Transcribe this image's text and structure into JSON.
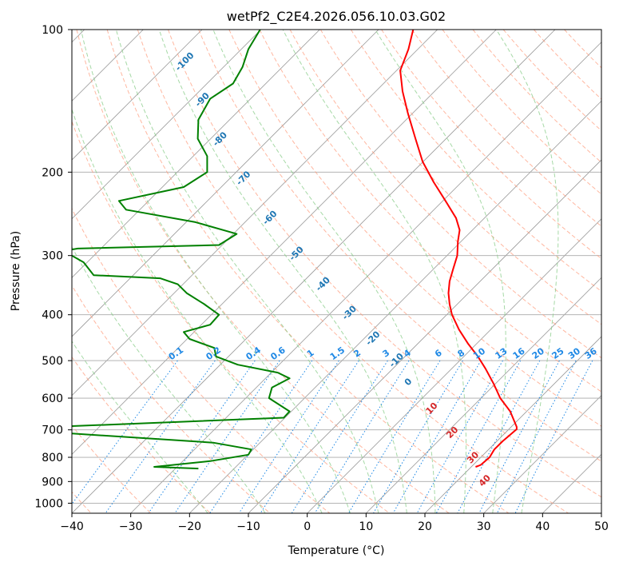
{
  "chart_data": {
    "type": "line",
    "title": "wetPf2_C2E4.2026.056.10.03.G02",
    "xlabel": "Temperature (°C)",
    "ylabel": "Pressure (hPa)",
    "xlim": [
      -40,
      50
    ],
    "ylim": [
      1050,
      100
    ],
    "y_scale": "log",
    "grid": true,
    "x_ticks": [
      "−40",
      "−30",
      "−20",
      "−10",
      "0",
      "10",
      "20",
      "30",
      "40",
      "50"
    ],
    "x_tick_values": [
      -40,
      -30,
      -20,
      -10,
      0,
      10,
      20,
      30,
      40,
      50
    ],
    "y_ticks": [
      "100",
      "200",
      "300",
      "400",
      "500",
      "600",
      "700",
      "800",
      "900",
      "1000"
    ],
    "y_tick_values": [
      100,
      200,
      300,
      400,
      500,
      600,
      700,
      800,
      900,
      1000
    ],
    "colors": {
      "temperature": "#ff0000",
      "dewpoint": "#008000",
      "isotherm": "#999999",
      "dry_adiabat": "#ff9977",
      "moist_adiabat": "#88cc88",
      "mixing_ratio": "#1e88e5",
      "wet_bulb_label": "#1f77b4",
      "dry_label": "#d62728"
    },
    "series": [
      {
        "key": "temperature",
        "points": [
          [
            18.0,
            100
          ],
          [
            17.2,
            110
          ],
          [
            15.8,
            122
          ],
          [
            16.2,
            135
          ],
          [
            17.1,
            150
          ],
          [
            18.4,
            170
          ],
          [
            19.6,
            190
          ],
          [
            21.5,
            210
          ],
          [
            23.5,
            230
          ],
          [
            25.3,
            250
          ],
          [
            25.9,
            265
          ],
          [
            25.6,
            280
          ],
          [
            25.5,
            300
          ],
          [
            24.8,
            320
          ],
          [
            24.2,
            340
          ],
          [
            24.0,
            360
          ],
          [
            24.2,
            380
          ],
          [
            24.6,
            400
          ],
          [
            25.8,
            430
          ],
          [
            27.3,
            460
          ],
          [
            29.0,
            490
          ],
          [
            30.3,
            520
          ],
          [
            31.7,
            560
          ],
          [
            32.8,
            600
          ],
          [
            34.5,
            640
          ],
          [
            35.6,
            690
          ],
          [
            35.6,
            698
          ],
          [
            33.2,
            740
          ],
          [
            31.8,
            770
          ],
          [
            31.0,
            800
          ],
          [
            29.5,
            830
          ],
          [
            29.0,
            835
          ],
          [
            28.6,
            838
          ]
        ]
      },
      {
        "key": "dewpoint",
        "points": [
          [
            -8.0,
            100
          ],
          [
            -10.0,
            110
          ],
          [
            -11.0,
            120
          ],
          [
            -12.6,
            130
          ],
          [
            -16.5,
            140
          ],
          [
            -18.5,
            155
          ],
          [
            -18.6,
            170
          ],
          [
            -17.0,
            185
          ],
          [
            -17.0,
            200
          ],
          [
            -21.0,
            215
          ],
          [
            -32.0,
            230
          ],
          [
            -30.8,
            240
          ],
          [
            -19.0,
            255
          ],
          [
            -12.0,
            270
          ],
          [
            -15.0,
            285
          ],
          [
            -39.0,
            290
          ],
          [
            -40.5,
            292
          ],
          [
            -40.0,
            300
          ],
          [
            -38.0,
            310
          ],
          [
            -36.3,
            330
          ],
          [
            -25.0,
            335
          ],
          [
            -22.0,
            345
          ],
          [
            -20.5,
            360
          ],
          [
            -17.5,
            380
          ],
          [
            -15.0,
            400
          ],
          [
            -16.5,
            420
          ],
          [
            -21.0,
            435
          ],
          [
            -20.0,
            450
          ],
          [
            -15.8,
            470
          ],
          [
            -15.5,
            490
          ],
          [
            -11.8,
            510
          ],
          [
            -5.0,
            530
          ],
          [
            -3.0,
            545
          ],
          [
            -6.0,
            570
          ],
          [
            -6.5,
            600
          ],
          [
            -3.0,
            640
          ],
          [
            -4.0,
            660
          ],
          [
            -40.5,
            688
          ],
          [
            -40.5,
            712
          ],
          [
            -16.0,
            745
          ],
          [
            -9.5,
            770
          ],
          [
            -10.0,
            790
          ],
          [
            -16.5,
            815
          ],
          [
            -26.0,
            838
          ],
          [
            -18.5,
            845
          ]
        ]
      }
    ],
    "isotherm_values": [
      -120,
      -110,
      -100,
      -90,
      -80,
      -70,
      -60,
      -50,
      -40,
      -30,
      -20,
      -10,
      0,
      10,
      20,
      30,
      40,
      50
    ],
    "dry_adiabat_values": [
      -40,
      -30,
      -20,
      -10,
      0,
      10,
      20,
      30,
      40,
      50,
      60,
      70,
      80,
      90,
      100,
      110,
      120,
      130,
      140,
      150,
      160,
      170,
      180
    ],
    "moist_adiabat_values": [
      -20,
      -10,
      0,
      5,
      10,
      15,
      20,
      25,
      30,
      35
    ],
    "mixing_ratio_values": [
      0.1,
      0.2,
      0.4,
      0.6,
      1,
      1.5,
      2,
      3,
      4,
      6,
      8,
      10,
      13,
      16,
      20,
      25,
      30,
      36
    ],
    "mixing_ratio_labels": [
      "0.1",
      "0.2",
      "0.4",
      "0.6",
      "1",
      "1.5",
      "2",
      "3",
      "4",
      "6",
      "8",
      "10",
      "13",
      "16",
      "20",
      "25",
      "30",
      "36"
    ],
    "wet_bulb_annotations": [
      {
        "text": "-100",
        "x": -20.5,
        "y": 118
      },
      {
        "text": "-90",
        "x": -17.5,
        "y": 142
      },
      {
        "text": "-80",
        "x": -14.5,
        "y": 172
      },
      {
        "text": "-70",
        "x": -10.5,
        "y": 208
      },
      {
        "text": "-60",
        "x": -6.0,
        "y": 252
      },
      {
        "text": "-50",
        "x": -1.5,
        "y": 300
      },
      {
        "text": "-40",
        "x": 3.0,
        "y": 348
      },
      {
        "text": "-30",
        "x": 7.5,
        "y": 400
      },
      {
        "text": "-20",
        "x": 11.5,
        "y": 453
      },
      {
        "text": "-10",
        "x": 15.5,
        "y": 504
      },
      {
        "text": "0",
        "x": 17.5,
        "y": 560
      }
    ],
    "dry_annotations": [
      {
        "text": "10",
        "x": 21.5,
        "y": 637
      },
      {
        "text": "20",
        "x": 25.0,
        "y": 716
      },
      {
        "text": "30",
        "x": 28.5,
        "y": 809
      },
      {
        "text": "40",
        "x": 30.5,
        "y": 905
      }
    ]
  }
}
